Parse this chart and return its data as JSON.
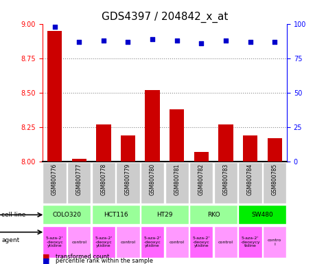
{
  "title": "GDS4397 / 204842_x_at",
  "samples": [
    "GSM800776",
    "GSM800777",
    "GSM800778",
    "GSM800779",
    "GSM800780",
    "GSM800781",
    "GSM800782",
    "GSM800783",
    "GSM800784",
    "GSM800785"
  ],
  "bar_values": [
    8.95,
    8.02,
    8.27,
    8.19,
    8.52,
    8.38,
    8.07,
    8.27,
    8.19,
    8.17
  ],
  "dot_values": [
    98,
    87,
    88,
    87,
    89,
    88,
    86,
    88,
    87,
    87
  ],
  "ylim_left": [
    8.0,
    9.0
  ],
  "ylim_right": [
    0,
    100
  ],
  "yticks_left": [
    8.0,
    8.25,
    8.5,
    8.75,
    9.0
  ],
  "yticks_right": [
    0,
    25,
    50,
    75,
    100
  ],
  "bar_color": "#cc0000",
  "dot_color": "#0000cc",
  "cell_lines": [
    {
      "label": "COLO320",
      "span": [
        0,
        2
      ],
      "color": "#99ff99"
    },
    {
      "label": "HCT116",
      "span": [
        2,
        4
      ],
      "color": "#99ff99"
    },
    {
      "label": "HT29",
      "span": [
        4,
        6
      ],
      "color": "#99ff99"
    },
    {
      "label": "RKO",
      "span": [
        6,
        8
      ],
      "color": "#99ff99"
    },
    {
      "label": "SW480",
      "span": [
        8,
        10
      ],
      "color": "#00ee00"
    }
  ],
  "agents": [
    {
      "label": "5-aza-2'\n-deoxyc\nytidine",
      "span": [
        0,
        1
      ],
      "color": "#ff66ff"
    },
    {
      "label": "control",
      "span": [
        1,
        2
      ],
      "color": "#ff99ff"
    },
    {
      "label": "5-aza-2'\n-deoxyc\nytidine",
      "span": [
        2,
        3
      ],
      "color": "#ff66ff"
    },
    {
      "label": "control",
      "span": [
        3,
        4
      ],
      "color": "#ff99ff"
    },
    {
      "label": "5-aza-2'\n-deoxyc\nytidine",
      "span": [
        4,
        5
      ],
      "color": "#ff66ff"
    },
    {
      "label": "control",
      "span": [
        5,
        6
      ],
      "color": "#ff99ff"
    },
    {
      "label": "5-aza-2'\n-deoxyc\nytidine",
      "span": [
        6,
        7
      ],
      "color": "#ff66ff"
    },
    {
      "label": "control",
      "span": [
        7,
        8
      ],
      "color": "#ff99ff"
    },
    {
      "label": "5-aza-2'\n-deoxycy\ntidine",
      "span": [
        8,
        9
      ],
      "color": "#ff66ff"
    },
    {
      "label": "contro\nl",
      "span": [
        9,
        10
      ],
      "color": "#ff99ff"
    }
  ],
  "grid_color": "#888888",
  "sample_bg_color": "#cccccc",
  "label_fontsize": 7,
  "tick_fontsize": 7,
  "title_fontsize": 11
}
